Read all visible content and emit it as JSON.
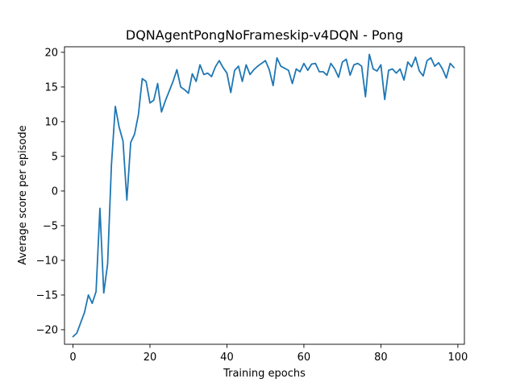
{
  "chart_data": {
    "type": "line",
    "title": "DQNAgentPongNoFrameskip-v4DQN - Pong",
    "xlabel": "Training epochs",
    "ylabel": "Average score per episode",
    "xlim": [
      -2.2,
      101.7
    ],
    "ylim": [
      -22.1,
      20.8
    ],
    "xticks": [
      0,
      20,
      40,
      60,
      80,
      100
    ],
    "yticks": [
      -20,
      -15,
      -10,
      -5,
      0,
      5,
      10,
      15,
      20
    ],
    "grid": false,
    "legend": false,
    "line_color": "#1f77b4",
    "series": [
      {
        "x": [
          0,
          1,
          2,
          3,
          4,
          5,
          6,
          7,
          8,
          9,
          10,
          11,
          12,
          13,
          14,
          15,
          16,
          17,
          18,
          19,
          20,
          21,
          22,
          23,
          24,
          25,
          26,
          27,
          28,
          29,
          30,
          31,
          32,
          33,
          34,
          35,
          36,
          37,
          38,
          39,
          40,
          41,
          42,
          43,
          44,
          45,
          46,
          47,
          48,
          49,
          50,
          51,
          52,
          53,
          54,
          55,
          56,
          57,
          58,
          59,
          60,
          61,
          62,
          63,
          64,
          65,
          66,
          67,
          68,
          69,
          70,
          71,
          72,
          73,
          74,
          75,
          76,
          77,
          78,
          79,
          80,
          81,
          82,
          83,
          84,
          85,
          86,
          87,
          88,
          89,
          90,
          91,
          92,
          93,
          94,
          95,
          96,
          97,
          98,
          99
        ],
        "values": [
          -21.0,
          -20.5,
          -19.0,
          -17.5,
          -15.0,
          -16.2,
          -14.5,
          -2.5,
          -14.7,
          -10.5,
          3.8,
          12.2,
          9.2,
          7.2,
          -1.3,
          7.0,
          8.2,
          11.0,
          16.2,
          15.8,
          12.7,
          13.1,
          15.5,
          11.4,
          13.0,
          14.4,
          15.8,
          17.5,
          15.0,
          14.6,
          14.1,
          16.9,
          15.8,
          18.2,
          16.8,
          17.0,
          16.5,
          17.9,
          18.8,
          17.8,
          17.0,
          14.2,
          17.4,
          18.0,
          15.8,
          18.2,
          16.8,
          17.5,
          18.0,
          18.4,
          18.8,
          17.5,
          15.2,
          19.2,
          18.0,
          17.7,
          17.4,
          15.5,
          17.6,
          17.2,
          18.4,
          17.4,
          18.3,
          18.4,
          17.2,
          17.2,
          16.7,
          18.4,
          17.6,
          16.4,
          18.6,
          19.0,
          16.7,
          18.2,
          18.4,
          18.0,
          13.6,
          19.7,
          17.6,
          17.3,
          18.2,
          13.2,
          17.4,
          17.6,
          17.0,
          17.6,
          16.0,
          18.6,
          17.9,
          19.3,
          17.3,
          16.6,
          18.8,
          19.2,
          18.0,
          18.5,
          17.6,
          16.3,
          18.4,
          17.8
        ]
      }
    ]
  }
}
